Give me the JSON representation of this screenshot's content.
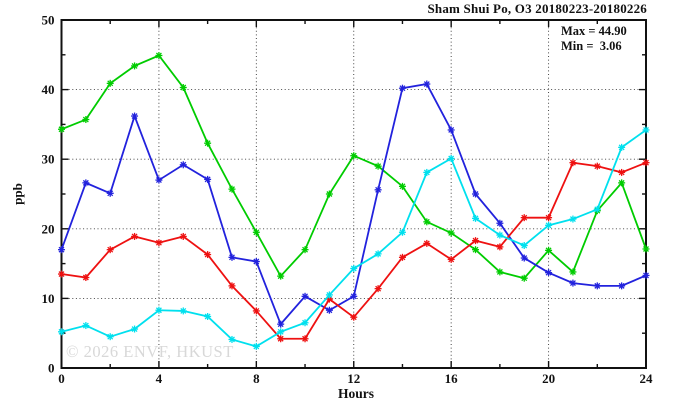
{
  "header": {
    "title": "Sham Shui Po, O3 20180223-20180226"
  },
  "stats": {
    "max_label": "Max = 44.90",
    "min_label": "Min =  3.06",
    "max_value": 44.9,
    "min_value": 3.06
  },
  "watermark": "© 2026 ENVF, HKUST",
  "colors": {
    "frame": "#111111",
    "grid": "#333333",
    "text": "#111111",
    "watermark": "#d8d8d8",
    "series_green": "#00cc00",
    "series_blue": "#2222dd",
    "series_red": "#ee1111",
    "series_cyan": "#00e0ee"
  },
  "chart_data": {
    "type": "line",
    "title": "Sham Shui Po, O3 20180223-20180226",
    "xlabel": "Hours",
    "ylabel": "ppb",
    "xlim": [
      0,
      24
    ],
    "ylim": [
      0,
      50
    ],
    "grid": true,
    "grid_style": "dotted",
    "marker": "asterisk",
    "x_major_ticks": [
      0,
      4,
      8,
      12,
      16,
      20,
      24
    ],
    "x_minor_ticks": [
      2,
      6,
      10,
      14,
      18,
      22
    ],
    "y_major_ticks": [
      0,
      10,
      20,
      30,
      40,
      50
    ],
    "y_minor_ticks": [
      5,
      15,
      25,
      35,
      45
    ],
    "x_tick_labels": [
      "0",
      "4",
      "8",
      "12",
      "16",
      "20",
      "24"
    ],
    "y_tick_labels": [
      "0",
      "10",
      "20",
      "30",
      "40",
      "50"
    ],
    "annotations": [
      {
        "text": "Max = 44.90",
        "position": "top-right"
      },
      {
        "text": "Min =  3.06",
        "position": "top-right"
      }
    ],
    "x": [
      0,
      1,
      2,
      3,
      4,
      5,
      6,
      7,
      8,
      9,
      10,
      11,
      12,
      13,
      14,
      15,
      16,
      17,
      18,
      19,
      20,
      21,
      22,
      23,
      24
    ],
    "series": [
      {
        "name": "green",
        "color": "#00cc00",
        "values": [
          34.3,
          35.7,
          40.9,
          43.4,
          44.9,
          40.3,
          32.3,
          25.7,
          19.5,
          13.2,
          17.0,
          25.0,
          30.5,
          29.0,
          26.1,
          21.0,
          19.4,
          17.0,
          13.8,
          12.9,
          16.9,
          13.8,
          22.6,
          26.6,
          17.1
        ]
      },
      {
        "name": "blue",
        "color": "#2222dd",
        "values": [
          17.0,
          26.6,
          25.1,
          36.2,
          27.0,
          29.2,
          27.1,
          15.9,
          15.3,
          6.3,
          10.3,
          8.3,
          10.3,
          25.6,
          40.2,
          40.8,
          34.2,
          25.0,
          20.8,
          15.8,
          13.7,
          12.2,
          11.8,
          11.8,
          13.3
        ]
      },
      {
        "name": "red",
        "color": "#ee1111",
        "values": [
          13.5,
          13.0,
          17.0,
          18.9,
          18.0,
          18.9,
          16.3,
          11.8,
          8.2,
          4.2,
          4.2,
          9.9,
          7.3,
          11.4,
          15.9,
          17.9,
          15.6,
          18.3,
          17.4,
          21.6,
          21.6,
          29.5,
          29.0,
          28.1,
          29.5
        ]
      },
      {
        "name": "cyan",
        "color": "#00e0ee",
        "values": [
          5.2,
          6.1,
          4.5,
          5.6,
          8.3,
          8.2,
          7.4,
          4.1,
          3.1,
          5.2,
          6.5,
          10.5,
          14.3,
          16.4,
          19.5,
          28.1,
          30.1,
          21.5,
          19.1,
          17.6,
          20.5,
          21.4,
          22.8,
          31.7,
          34.2
        ]
      }
    ]
  }
}
